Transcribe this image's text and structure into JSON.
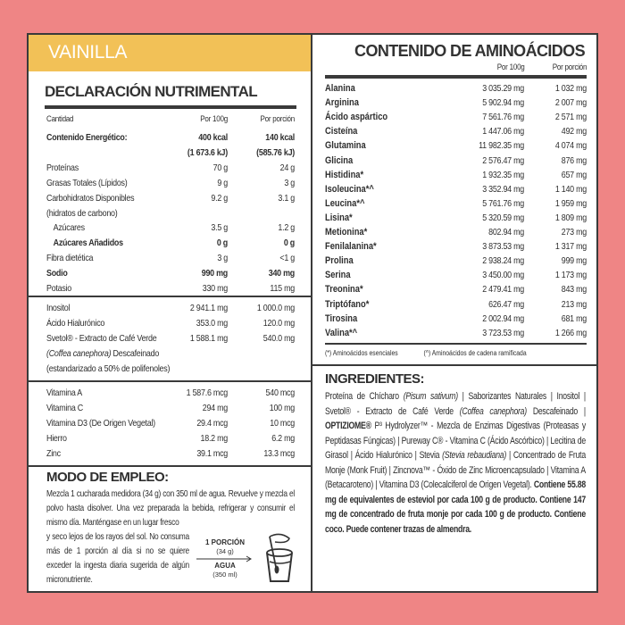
{
  "colors": {
    "background": "#ef8585",
    "flavor_band": "#f2c157",
    "ink": "#2e2e2e"
  },
  "flavor": "VAINILLA",
  "nutrition": {
    "title": "DECLARACIÓN NUTRIMENTAL",
    "header": {
      "label": "Cantidad",
      "per100": "Por 100g",
      "perServing": "Por porción"
    },
    "rows": [
      {
        "label": "Contenido Energético:",
        "per100": "400 kcal",
        "perServing": "140 kcal",
        "bold": true
      },
      {
        "label": "",
        "per100": "(1 673.6 kJ)",
        "perServing": "(585.76 kJ)",
        "bold": true
      },
      {
        "label": "Proteínas",
        "per100": "70 g",
        "perServing": "24 g"
      },
      {
        "label": "Grasas Totales (Lípidos)",
        "per100": "9 g",
        "perServing": "3 g"
      },
      {
        "label": "Carbohidratos Disponibles",
        "per100": "9.2 g",
        "perServing": "3.1 g"
      },
      {
        "label": "(hidratos de carbono)",
        "per100": "",
        "perServing": ""
      },
      {
        "label": "Azúcares",
        "per100": "3.5 g",
        "perServing": "1.2 g",
        "indent": true
      },
      {
        "label": "Azúcares Añadidos",
        "per100": "0 g",
        "perServing": "0 g",
        "indent": true,
        "bold": true
      },
      {
        "label": "Fibra dietética",
        "per100": "3 g",
        "perServing": "<1 g"
      },
      {
        "label": "Sodio",
        "per100": "990 mg",
        "perServing": "340 mg",
        "bold": true
      },
      {
        "label": "Potasio",
        "per100": "330 mg",
        "perServing": "115 mg"
      }
    ],
    "extras": [
      {
        "label": "Inositol",
        "per100": "2 941.1 mg",
        "perServing": "1 000.0 mg"
      },
      {
        "label": "Ácido Hialurónico",
        "per100": "353.0 mg",
        "perServing": "120.0 mg"
      },
      {
        "label": "Svetol® - Extracto de Café Verde",
        "per100": "1 588.1 mg",
        "perServing": "540.0 mg"
      },
      {
        "label": "",
        "labelItalic": "(Coffea canephora)",
        "labelRest": " Descafeinado",
        "per100": "",
        "perServing": ""
      },
      {
        "label": "(estandarizado a 50% de polifenoles)",
        "per100": "",
        "perServing": ""
      }
    ],
    "vitamins": [
      {
        "label": "Vitamina A",
        "per100": "1 587.6 mcg",
        "perServing": "540 mcg"
      },
      {
        "label": "Vitamina C",
        "per100": "294 mg",
        "perServing": "100 mg"
      },
      {
        "label": "Vitamina D3 (De Origen Vegetal)",
        "per100": "29.4 mcg",
        "perServing": "10 mcg"
      },
      {
        "label": "Hierro",
        "per100": "18.2 mg",
        "perServing": "6.2 mg"
      },
      {
        "label": "Zinc",
        "per100": "39.1 mcg",
        "perServing": "13.3 mcg"
      }
    ]
  },
  "usage": {
    "title": "MODO DE EMPLEO:",
    "text1": "Mezcla 1 cucharada medidora (34 g) con 350 ml de agua. Revuelve y mezcla el polvo hasta disolver. Una vez preparada la bebida, refrigerar y consumir el mismo día. Manténgase en un lugar fresco",
    "text2": "y seco lejos de los rayos del sol. No consuma más de 1 porción al día si no se quiere exceder la ingesta diaria sugerida de algún micronutriente.",
    "serving_label": "1 PORCIÓN",
    "serving_amount": "(34 g)",
    "water_label": "AGUA",
    "water_amount": "(350 ml)",
    "icon": "glass-stirring-icon"
  },
  "amino": {
    "title": "CONTENIDO DE AMINOÁCIDOS",
    "per100": "Por 100g",
    "perServing": "Por porción",
    "rows": [
      {
        "label": "Alanina",
        "per100": "3 035.29 mg",
        "perServing": "1 032 mg"
      },
      {
        "label": "Arginina",
        "per100": "5 902.94 mg",
        "perServing": "2 007 mg"
      },
      {
        "label": "Ácido aspártico",
        "per100": "7 561.76 mg",
        "perServing": "2 571 mg"
      },
      {
        "label": "Cisteína",
        "per100": "1 447.06 mg",
        "perServing": "492 mg"
      },
      {
        "label": "Glutamina",
        "per100": "11 982.35 mg",
        "perServing": "4 074 mg"
      },
      {
        "label": "Glicina",
        "per100": "2 576.47 mg",
        "perServing": "876 mg"
      },
      {
        "label": "Histidina*",
        "per100": "1 932.35 mg",
        "perServing": "657 mg"
      },
      {
        "label": "Isoleucina*^",
        "per100": "3 352.94 mg",
        "perServing": "1 140 mg"
      },
      {
        "label": "Leucina*^",
        "per100": "5 761.76 mg",
        "perServing": "1 959 mg"
      },
      {
        "label": "Lisina*",
        "per100": "5 320.59 mg",
        "perServing": "1 809 mg"
      },
      {
        "label": "Metionina*",
        "per100": "802.94 mg",
        "perServing": "273 mg"
      },
      {
        "label": "Fenilalanina*",
        "per100": "3 873.53 mg",
        "perServing": "1 317 mg"
      },
      {
        "label": "Prolina",
        "per100": "2 938.24 mg",
        "perServing": "999 mg"
      },
      {
        "label": "Serina",
        "per100": "3 450.00 mg",
        "perServing": "1 173 mg"
      },
      {
        "label": "Treonina*",
        "per100": "2 479.41 mg",
        "perServing": "843 mg"
      },
      {
        "label": "Triptófano*",
        "per100": "626.47 mg",
        "perServing": "213 mg"
      },
      {
        "label": "Tirosina",
        "per100": "2 002.94 mg",
        "perServing": "681 mg"
      },
      {
        "label": "Valina*^",
        "per100": "3 723.53 mg",
        "perServing": "1 266 mg"
      }
    ],
    "footnote_essential": "(*)   Aminoácidos esenciales",
    "footnote_branched": "(^)  Aminoácidos de cadena ramificada"
  },
  "ingredients": {
    "title": "INGREDIENTES:",
    "segments": [
      {
        "t": "Proteína de Chícharo ",
        "s": ""
      },
      {
        "t": "(Pisum sativum)",
        "s": "i"
      },
      {
        "t": " | Saborizantes Naturales | Inositol | Svetol® - Extracto de Café Verde ",
        "s": ""
      },
      {
        "t": "(Coffea canephora)",
        "s": "i"
      },
      {
        "t": " Descafeinado | ",
        "s": ""
      },
      {
        "t": "OPTIZIOME®",
        "s": "b"
      },
      {
        "t": " P³ Hydrolyzer™ - Mezcla de Enzimas Digestivas (Proteasas y Peptidasas Fúngicas) | Pureway C® - Vitamina C (Ácido Ascórbico) | Lecitina de Girasol | Ácido Hialurónico | Stevia ",
        "s": ""
      },
      {
        "t": "(Stevia rebaudiana)",
        "s": "i"
      },
      {
        "t": " | Concentrado de Fruta Monje (Monk Fruit) | Zincnova™ - Óxido de Zinc Microencapsulado | Vitamina A (Betacaroteno) | Vitamina D3 (Colecalciferol de Origen Vegetal). ",
        "s": ""
      },
      {
        "t": "Contiene 55.88 mg de equivalentes de esteviol por cada 100 g de producto. Contiene 147 mg de concentrado de fruta monje por cada 100 g de producto. Contiene coco. Puede contener trazas de almendra.",
        "s": "b"
      }
    ]
  }
}
